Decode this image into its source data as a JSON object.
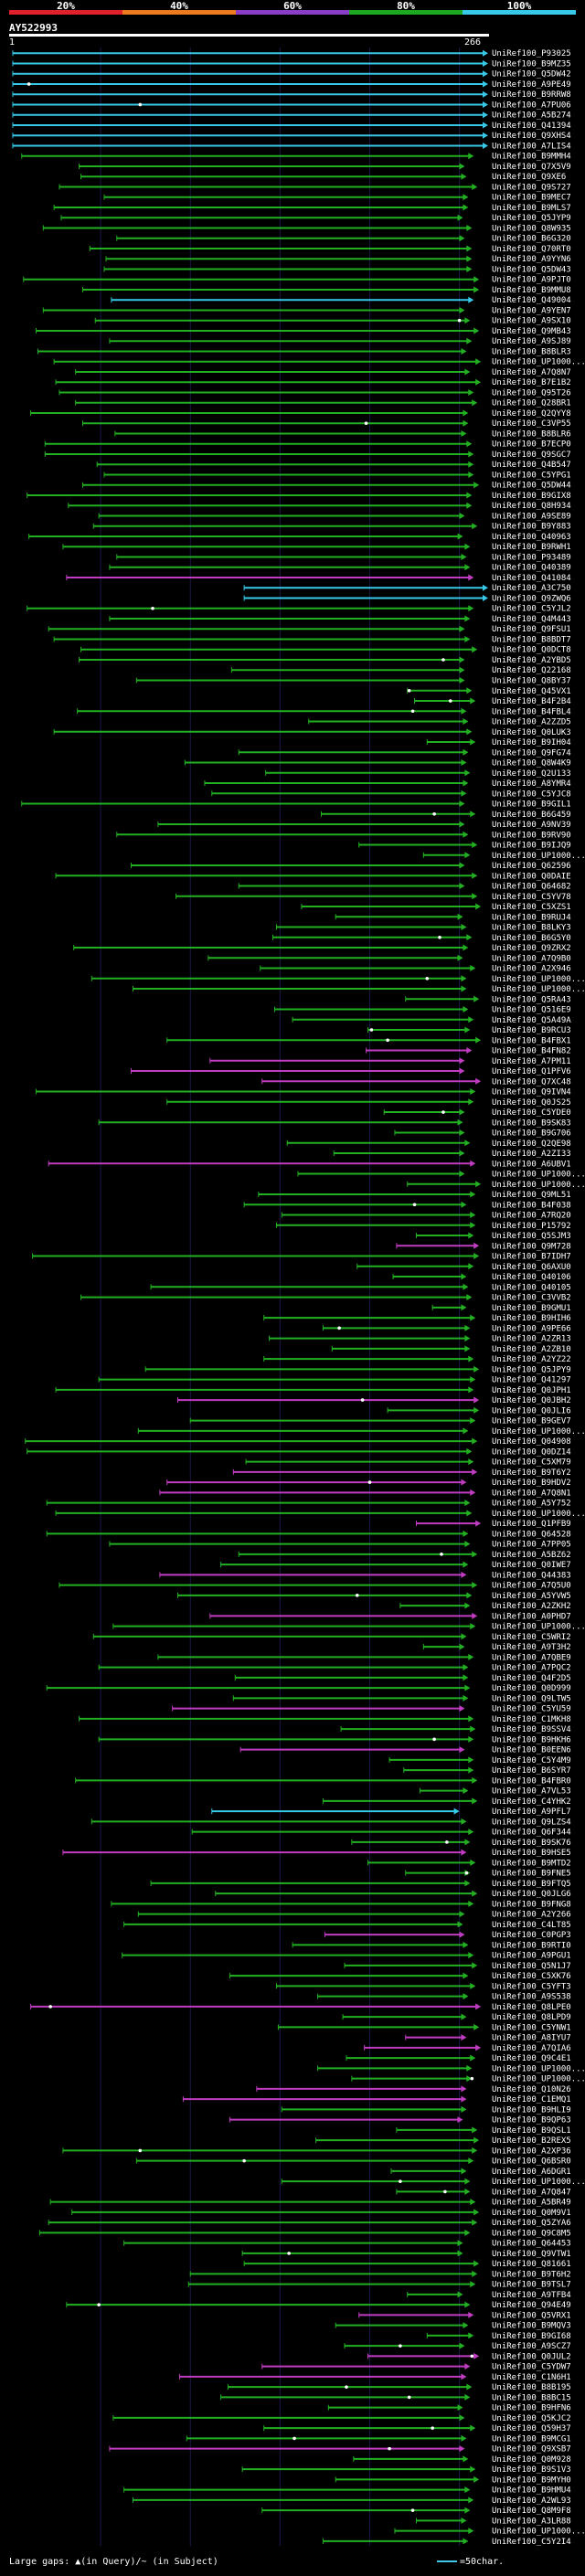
{
  "scale": {
    "labels": [
      "20%",
      "40%",
      "60%",
      "80%",
      "100%"
    ],
    "colors": [
      "#e0202a",
      "#ec7a1e",
      "#8a3ec8",
      "#1ca820",
      "#38c8e8"
    ]
  },
  "query": {
    "id": "AY522993",
    "start": "1",
    "end": "266"
  },
  "legend": {
    "text": "Large gaps: ▲(in Query)/~ (in Subject)",
    "right": "=50char."
  },
  "chart_data": {
    "type": "alignment-overview",
    "query_length": 266,
    "hits": []
  }
}
